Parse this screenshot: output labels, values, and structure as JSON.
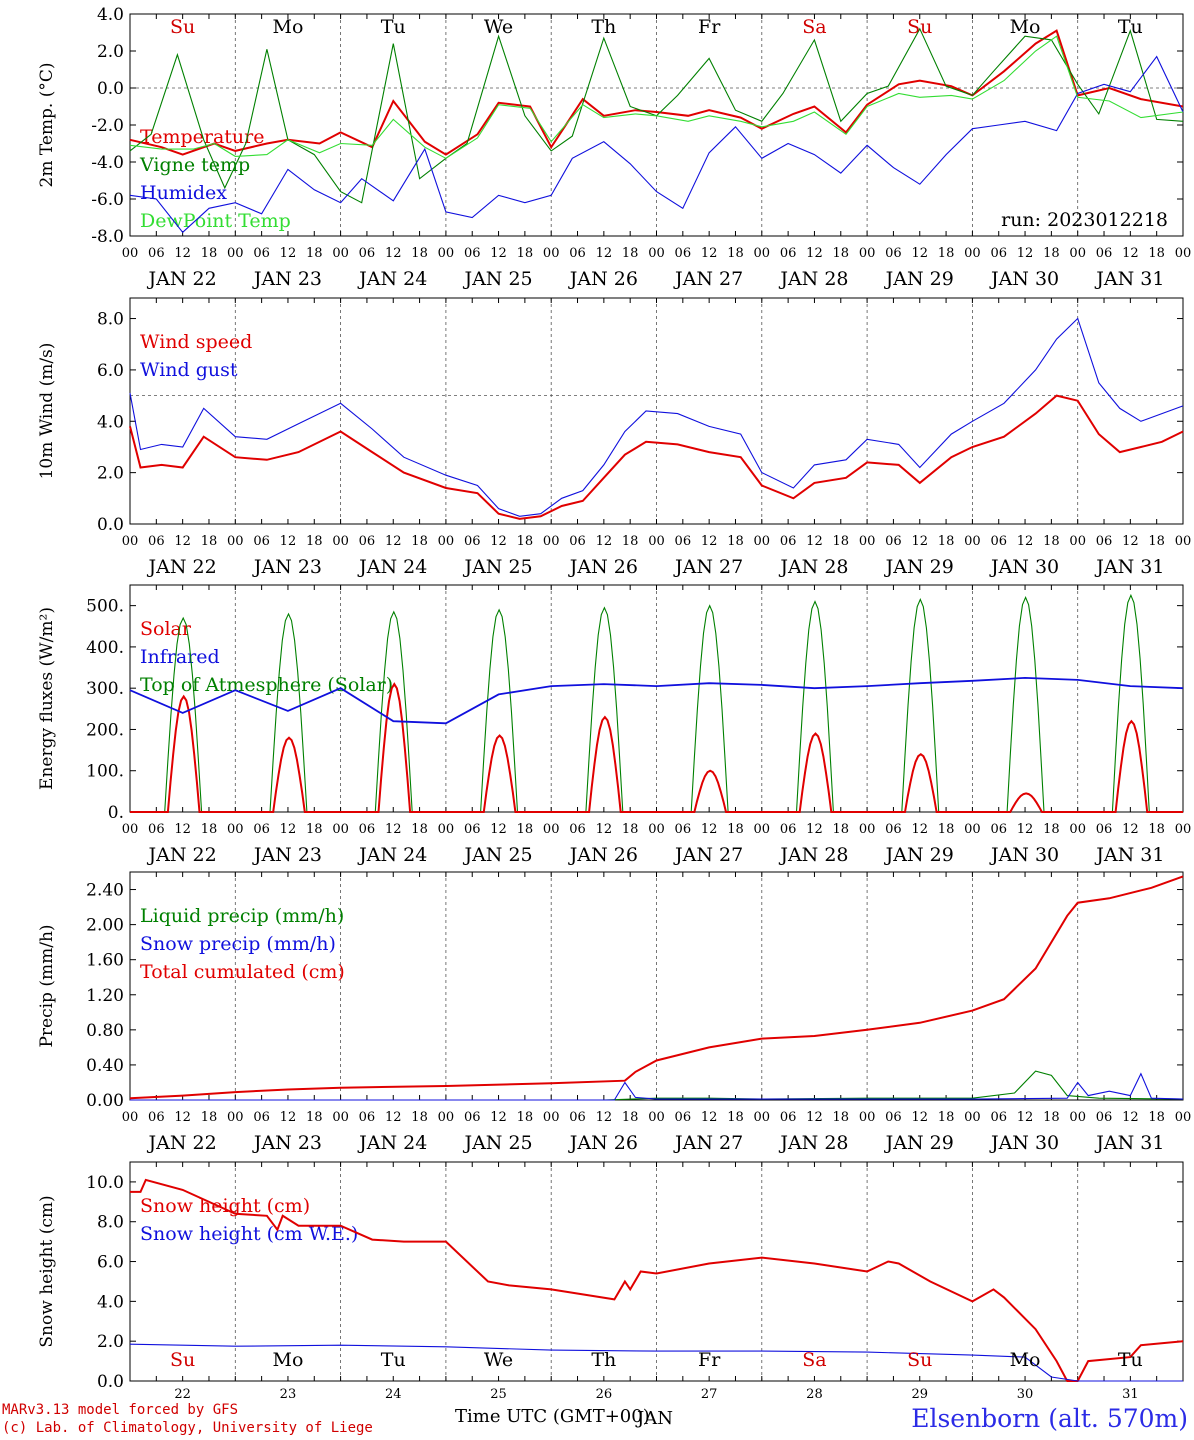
{
  "days": [
    "JAN 22",
    "JAN 23",
    "JAN 24",
    "JAN 25",
    "JAN 26",
    "JAN 27",
    "JAN 28",
    "JAN 29",
    "JAN 30",
    "JAN 31"
  ],
  "hour_labels": [
    "00",
    "06",
    "12",
    "18"
  ],
  "weekday_top": [
    {
      "t": "Su",
      "c": "#d00000",
      "x": 0.5
    },
    {
      "t": "Mo",
      "c": "#000000",
      "x": 1.5
    },
    {
      "t": "Tu",
      "c": "#000000",
      "x": 2.5
    },
    {
      "t": "We",
      "c": "#000000",
      "x": 3.5
    },
    {
      "t": "Th",
      "c": "#000000",
      "x": 4.5
    },
    {
      "t": "Fr",
      "c": "#000000",
      "x": 5.5
    },
    {
      "t": "Sa",
      "c": "#d00000",
      "x": 6.5
    },
    {
      "t": "Su",
      "c": "#d00000",
      "x": 7.5
    },
    {
      "t": "Mo",
      "c": "#000000",
      "x": 8.5
    },
    {
      "t": "Tu",
      "c": "#000000",
      "x": 9.5
    }
  ],
  "bottom_days": [
    "22",
    "23",
    "24",
    "25",
    "26",
    "27",
    "28",
    "29",
    "30",
    "31"
  ],
  "footer": {
    "xtitle": "Time UTC (GMT+00)",
    "credit1": "MARv3.13 model forced by GFS",
    "credit2": "(c) Lab. of Climatology, University of Liege",
    "station": "Elsenborn (alt. 570m)",
    "run": "run: 2023012218",
    "overlap": "JAN"
  },
  "colors": {
    "red": "#e00000",
    "green": "#008000",
    "blue": "#1010dd",
    "lightgreen": "#33dd33"
  },
  "chart_data": [
    {
      "type": "line",
      "ylabel": "2m Temp. (°C)",
      "ylim": [
        -8,
        4
      ],
      "yticks": [
        "4.0",
        "2.0",
        "0.0",
        "-2.0",
        "-4.0",
        "-6.0",
        "-8.0"
      ],
      "dashed_y": 0,
      "legend": [
        {
          "t": "Temperature",
          "c": "red"
        },
        {
          "t": "Vigne temp",
          "c": "green"
        },
        {
          "t": "Humidex",
          "c": "blue"
        },
        {
          "t": "DewPoint Temp",
          "c": "lightgreen"
        }
      ],
      "series": [
        {
          "name": "Temperature",
          "color": "red",
          "x": [
            0,
            0.3,
            0.5,
            0.8,
            1.0,
            1.3,
            1.5,
            1.8,
            2.0,
            2.3,
            2.5,
            2.8,
            3.0,
            3.3,
            3.5,
            3.8,
            4.0,
            4.3,
            4.5,
            4.8,
            5.0,
            5.3,
            5.5,
            5.8,
            6.0,
            6.3,
            6.5,
            6.8,
            7.0,
            7.3,
            7.5,
            7.8,
            8.0,
            8.3,
            8.6,
            8.8,
            9.0,
            9.3,
            9.6,
            10
          ],
          "y": [
            -2.8,
            -3.2,
            -3.6,
            -3.0,
            -3.4,
            -3.0,
            -2.8,
            -3.0,
            -2.4,
            -3.2,
            -0.7,
            -2.9,
            -3.6,
            -2.5,
            -0.8,
            -1.0,
            -3.2,
            -0.6,
            -1.5,
            -1.2,
            -1.3,
            -1.5,
            -1.2,
            -1.6,
            -2.2,
            -1.4,
            -1.0,
            -2.4,
            -0.9,
            0.2,
            0.4,
            0.1,
            -0.4,
            0.9,
            2.4,
            3.1,
            -0.4,
            0.0,
            -0.6,
            -1.0
          ]
        },
        {
          "name": "Vigne temp",
          "color": "green",
          "x": [
            0,
            0.2,
            0.45,
            0.7,
            0.9,
            1.1,
            1.3,
            1.5,
            1.75,
            2.0,
            2.2,
            2.5,
            2.75,
            3.0,
            3.2,
            3.5,
            3.75,
            4.0,
            4.2,
            4.5,
            4.75,
            5.0,
            5.2,
            5.5,
            5.75,
            6.0,
            6.2,
            6.5,
            6.75,
            7.0,
            7.2,
            7.5,
            7.75,
            8.0,
            8.2,
            8.5,
            8.75,
            9.0,
            9.2,
            9.5,
            9.75,
            10
          ],
          "y": [
            -3.4,
            -2.5,
            1.8,
            -2.8,
            -5.4,
            -3.0,
            2.1,
            -2.8,
            -3.6,
            -5.6,
            -6.2,
            2.4,
            -4.9,
            -3.8,
            -3.0,
            2.8,
            -1.5,
            -3.4,
            -2.6,
            2.7,
            -1.0,
            -1.5,
            -0.4,
            1.6,
            -1.2,
            -1.8,
            -0.3,
            2.6,
            -1.8,
            -0.3,
            0.1,
            3.2,
            0.1,
            -0.4,
            0.9,
            2.8,
            2.6,
            0.2,
            -1.4,
            3.1,
            -1.7,
            -1.8
          ]
        },
        {
          "name": "Humidex",
          "color": "blue",
          "x": [
            0,
            0.25,
            0.5,
            0.75,
            1.0,
            1.25,
            1.5,
            1.75,
            2.0,
            2.2,
            2.5,
            2.8,
            3.0,
            3.25,
            3.5,
            3.75,
            4.0,
            4.2,
            4.5,
            4.75,
            5.0,
            5.25,
            5.5,
            5.75,
            6.0,
            6.25,
            6.5,
            6.75,
            7.0,
            7.25,
            7.5,
            7.75,
            8.0,
            8.25,
            8.5,
            8.8,
            9.0,
            9.25,
            9.5,
            9.75,
            10
          ],
          "y": [
            -5.8,
            -6.0,
            -7.8,
            -6.5,
            -6.2,
            -6.8,
            -4.4,
            -5.5,
            -6.2,
            -4.9,
            -6.1,
            -3.3,
            -6.7,
            -7.0,
            -5.8,
            -6.2,
            -5.8,
            -3.8,
            -2.9,
            -4.1,
            -5.6,
            -6.5,
            -3.5,
            -2.1,
            -3.8,
            -3.0,
            -3.6,
            -4.6,
            -3.1,
            -4.3,
            -5.2,
            -3.6,
            -2.2,
            -2.0,
            -1.8,
            -2.3,
            -0.3,
            0.2,
            -0.2,
            1.7,
            -1.3
          ]
        },
        {
          "name": "DewPoint Temp",
          "color": "lightgreen",
          "x": [
            0,
            0.3,
            0.6,
            0.8,
            1.0,
            1.3,
            1.5,
            1.8,
            2.0,
            2.3,
            2.5,
            2.8,
            3.0,
            3.3,
            3.5,
            3.8,
            4.0,
            4.3,
            4.5,
            4.8,
            5.0,
            5.3,
            5.5,
            5.8,
            6.0,
            6.3,
            6.5,
            6.8,
            7.0,
            7.3,
            7.5,
            7.8,
            8.0,
            8.3,
            8.6,
            8.8,
            9.0,
            9.3,
            9.6,
            10
          ],
          "y": [
            -3.1,
            -3.3,
            -3.3,
            -3.0,
            -3.7,
            -3.6,
            -2.8,
            -3.5,
            -3.0,
            -3.1,
            -1.7,
            -3.2,
            -3.8,
            -2.7,
            -0.9,
            -1.1,
            -2.9,
            -0.9,
            -1.6,
            -1.4,
            -1.5,
            -1.8,
            -1.5,
            -1.8,
            -2.1,
            -1.8,
            -1.3,
            -2.5,
            -1.0,
            -0.3,
            -0.5,
            -0.4,
            -0.6,
            0.4,
            2.0,
            2.8,
            -0.5,
            -0.7,
            -1.6,
            -1.3
          ]
        }
      ]
    },
    {
      "type": "line",
      "ylabel": "10m Wind (m/s)",
      "ylim": [
        0,
        8.8
      ],
      "yticks": [
        "8.0",
        "6.0",
        "4.0",
        "2.0",
        "0.0"
      ],
      "dashed_y": 5,
      "legend": [
        {
          "t": "Wind speed",
          "c": "red"
        },
        {
          "t": "Wind gust",
          "c": "blue"
        }
      ],
      "series": [
        {
          "name": "Wind speed",
          "color": "red",
          "x": [
            0,
            0.1,
            0.3,
            0.5,
            0.7,
            1.0,
            1.3,
            1.6,
            2.0,
            2.3,
            2.6,
            3.0,
            3.3,
            3.5,
            3.7,
            3.9,
            4.1,
            4.3,
            4.5,
            4.7,
            4.9,
            5.2,
            5.5,
            5.8,
            6.0,
            6.3,
            6.5,
            6.8,
            7.0,
            7.3,
            7.5,
            7.8,
            8.0,
            8.3,
            8.6,
            8.8,
            9.0,
            9.2,
            9.4,
            9.6,
            9.8,
            10
          ],
          "y": [
            3.8,
            2.2,
            2.3,
            2.2,
            3.4,
            2.6,
            2.5,
            2.8,
            3.6,
            2.8,
            2.0,
            1.4,
            1.2,
            0.4,
            0.2,
            0.3,
            0.7,
            0.9,
            1.8,
            2.7,
            3.2,
            3.1,
            2.8,
            2.6,
            1.5,
            1.0,
            1.6,
            1.8,
            2.4,
            2.3,
            1.6,
            2.6,
            3.0,
            3.4,
            4.3,
            5.0,
            4.8,
            3.5,
            2.8,
            3.0,
            3.2,
            3.6
          ]
        },
        {
          "name": "Wind gust",
          "color": "blue",
          "x": [
            0,
            0.1,
            0.3,
            0.5,
            0.7,
            1.0,
            1.3,
            1.6,
            2.0,
            2.3,
            2.6,
            3.0,
            3.3,
            3.5,
            3.7,
            3.9,
            4.1,
            4.3,
            4.5,
            4.7,
            4.9,
            5.2,
            5.5,
            5.8,
            6.0,
            6.3,
            6.5,
            6.8,
            7.0,
            7.3,
            7.5,
            7.8,
            8.0,
            8.3,
            8.6,
            8.8,
            9.0,
            9.2,
            9.4,
            9.6,
            9.8,
            10
          ],
          "y": [
            5.1,
            2.9,
            3.1,
            3.0,
            4.5,
            3.4,
            3.3,
            3.9,
            4.7,
            3.7,
            2.6,
            1.9,
            1.5,
            0.6,
            0.3,
            0.4,
            1.0,
            1.3,
            2.3,
            3.6,
            4.4,
            4.3,
            3.8,
            3.5,
            2.0,
            1.4,
            2.3,
            2.5,
            3.3,
            3.1,
            2.2,
            3.5,
            4.0,
            4.7,
            6.0,
            7.2,
            8.0,
            5.5,
            4.5,
            4.0,
            4.3,
            4.6
          ]
        }
      ]
    },
    {
      "type": "line",
      "ylabel": "Energy fluxes (W/m²)",
      "ylim": [
        0,
        550
      ],
      "yticks": [
        "500.",
        "400.",
        "300.",
        "200.",
        "100.",
        "0."
      ],
      "legend": [
        {
          "t": "Solar",
          "c": "red"
        },
        {
          "t": "Infrared",
          "c": "blue"
        },
        {
          "t": "Top of Atmesphere (Solar)",
          "c": "green"
        }
      ],
      "solar_peaks": [
        280,
        180,
        310,
        185,
        230,
        100,
        190,
        140,
        45,
        220
      ],
      "toa_peaks": [
        470,
        480,
        485,
        490,
        495,
        500,
        510,
        515,
        520,
        525
      ],
      "infrared": {
        "x": [
          0,
          0.5,
          1,
          1.5,
          2,
          2.5,
          3,
          3.5,
          4,
          4.5,
          5,
          5.5,
          6,
          6.5,
          7,
          7.5,
          8,
          8.5,
          9,
          9.5,
          10
        ],
        "y": [
          295,
          240,
          295,
          245,
          300,
          220,
          215,
          285,
          305,
          310,
          305,
          312,
          308,
          300,
          305,
          312,
          318,
          325,
          320,
          305,
          300
        ]
      }
    },
    {
      "type": "line",
      "ylabel": "Precip (mm/h)",
      "ylim": [
        0,
        2.6
      ],
      "yticks": [
        "2.40",
        "2.00",
        "1.60",
        "1.20",
        "0.80",
        "0.40",
        "0.00"
      ],
      "legend": [
        {
          "t": "Liquid precip (mm/h)",
          "c": "green"
        },
        {
          "t": "Snow precip (mm/h)",
          "c": "blue"
        },
        {
          "t": "Total cumulated (cm)",
          "c": "red"
        }
      ],
      "series": [
        {
          "name": "Total cumulated (cm)",
          "color": "red",
          "x": [
            0,
            0.5,
            1,
            1.5,
            2,
            3,
            4,
            4.7,
            4.8,
            5,
            5.5,
            6,
            6.5,
            7,
            7.5,
            8,
            8.3,
            8.6,
            8.9,
            9.0,
            9.3,
            9.7,
            10
          ],
          "y": [
            0.02,
            0.05,
            0.09,
            0.12,
            0.14,
            0.16,
            0.19,
            0.22,
            0.32,
            0.45,
            0.6,
            0.7,
            0.73,
            0.8,
            0.88,
            1.02,
            1.15,
            1.5,
            2.1,
            2.25,
            2.3,
            2.42,
            2.55
          ]
        },
        {
          "name": "Liquid precip (mm/h)",
          "color": "green",
          "x": [
            0,
            4.5,
            5,
            5.5,
            6,
            7,
            8,
            8.4,
            8.6,
            8.75,
            8.9,
            9.2,
            10
          ],
          "y": [
            0,
            0,
            0.02,
            0.02,
            0.01,
            0.02,
            0.02,
            0.08,
            0.33,
            0.28,
            0.05,
            0.02,
            0.01
          ]
        },
        {
          "name": "Snow precip (mm/h)",
          "color": "blue",
          "x": [
            0,
            4.6,
            4.7,
            4.8,
            5,
            6,
            8,
            8.9,
            9.0,
            9.1,
            9.3,
            9.5,
            9.6,
            9.7,
            10
          ],
          "y": [
            0,
            0,
            0.2,
            0.03,
            0.01,
            0.01,
            0.01,
            0.02,
            0.2,
            0.05,
            0.1,
            0.05,
            0.3,
            0.02,
            0.01
          ]
        }
      ]
    },
    {
      "type": "line",
      "ylabel": "Snow height (cm)",
      "ylim": [
        0,
        11
      ],
      "yticks": [
        "10.0",
        "8.0",
        "6.0",
        "4.0",
        "2.0",
        "0.0"
      ],
      "legend": [
        {
          "t": "Snow height (cm)",
          "c": "red"
        },
        {
          "t": "Snow height (cm W.E.)",
          "c": "blue"
        }
      ],
      "series": [
        {
          "name": "Snow height (cm)",
          "color": "red",
          "x": [
            0,
            0.1,
            0.15,
            0.5,
            1,
            1.3,
            1.4,
            1.45,
            1.6,
            2.0,
            2.3,
            2.6,
            3.0,
            3.4,
            3.6,
            4.0,
            4.6,
            4.7,
            4.75,
            4.85,
            5.0,
            5.5,
            6.0,
            6.5,
            7.0,
            7.2,
            7.3,
            7.6,
            8.0,
            8.2,
            8.3,
            8.6,
            8.8,
            8.9,
            9.0,
            9.1,
            9.5,
            9.6,
            10
          ],
          "y": [
            9.5,
            9.5,
            10.1,
            9.6,
            8.4,
            8.3,
            7.6,
            8.3,
            7.8,
            7.8,
            7.1,
            7.0,
            7.0,
            5.0,
            4.8,
            4.6,
            4.1,
            5.0,
            4.6,
            5.5,
            5.4,
            5.9,
            6.2,
            5.9,
            5.5,
            6.0,
            5.9,
            5.0,
            4.0,
            4.6,
            4.2,
            2.6,
            1.0,
            0.0,
            0.0,
            1.0,
            1.2,
            1.8,
            2.0
          ]
        },
        {
          "name": "Snow height (cm W.E.)",
          "color": "blue",
          "x": [
            0,
            1,
            2,
            3,
            4,
            5,
            6,
            7,
            8,
            8.5,
            8.75,
            9,
            10
          ],
          "y": [
            1.85,
            1.75,
            1.8,
            1.72,
            1.55,
            1.5,
            1.5,
            1.45,
            1.3,
            1.2,
            0.2,
            0.0,
            0.0
          ]
        }
      ]
    }
  ]
}
